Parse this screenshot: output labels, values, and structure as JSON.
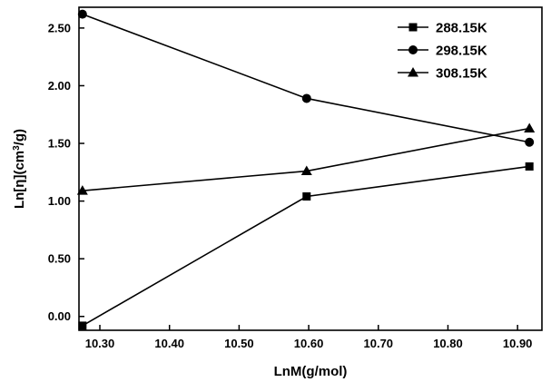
{
  "chart_data": {
    "type": "line",
    "xlabel": "LnM(g/mol)",
    "ylabel_parts": [
      "Ln[η](cm",
      "3",
      "/g)"
    ],
    "xlim": [
      10.27,
      10.935
    ],
    "ylim": [
      -0.12,
      2.68
    ],
    "xticks": [
      10.3,
      10.4,
      10.5,
      10.6,
      10.7,
      10.8,
      10.9
    ],
    "xtick_labels": [
      "10.30",
      "10.40",
      "10.50",
      "10.60",
      "10.70",
      "10.80",
      "10.90"
    ],
    "yticks": [
      0,
      0.5,
      1.0,
      1.5,
      2.0,
      2.5
    ],
    "ytick_labels": [
      "0.00",
      "0.50",
      "1.00",
      "1.50",
      "2.00",
      "2.50"
    ],
    "legend_position": "top-right",
    "grid": false,
    "series": [
      {
        "name": "288.15K",
        "marker": "square",
        "x": [
          10.275,
          10.597,
          10.917
        ],
        "y": [
          -0.08,
          1.04,
          1.3
        ]
      },
      {
        "name": "298.15K",
        "marker": "circle",
        "x": [
          10.275,
          10.597,
          10.917
        ],
        "y": [
          2.62,
          1.89,
          1.51
        ]
      },
      {
        "name": "308.15K",
        "marker": "triangle",
        "x": [
          10.275,
          10.597,
          10.917
        ],
        "y": [
          1.09,
          1.26,
          1.63
        ]
      }
    ]
  }
}
